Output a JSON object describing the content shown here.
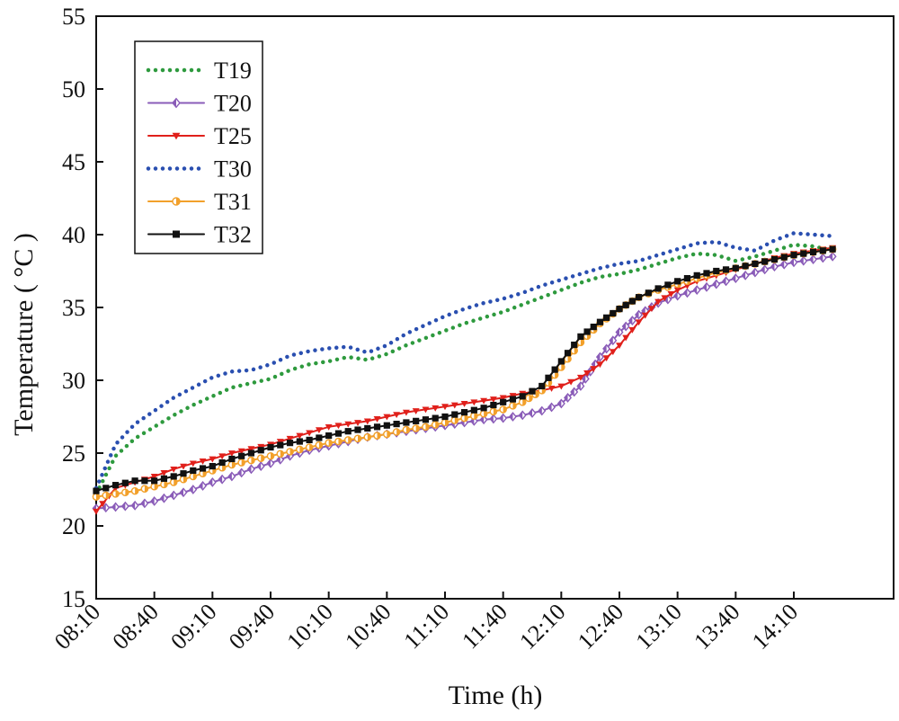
{
  "chart_data": {
    "type": "line",
    "title": "",
    "xlabel": "Time (h)",
    "ylabel": "Temperature ( °C )",
    "ylim": [
      15,
      55
    ],
    "yticks": [
      15,
      20,
      25,
      30,
      35,
      40,
      45,
      50,
      55
    ],
    "xlim": [
      "08:10",
      "14:30"
    ],
    "xticks": [
      "08:10",
      "08:40",
      "09:10",
      "09:40",
      "10:10",
      "10:40",
      "11:10",
      "11:40",
      "12:10",
      "12:40",
      "13:10",
      "13:40",
      "14:10"
    ],
    "grid": false,
    "legend_position": "top-left",
    "x": [
      "08:10",
      "08:20",
      "08:30",
      "08:40",
      "08:50",
      "09:00",
      "09:10",
      "09:20",
      "09:30",
      "09:40",
      "09:50",
      "10:00",
      "10:10",
      "10:20",
      "10:30",
      "10:40",
      "10:50",
      "11:00",
      "11:10",
      "11:20",
      "11:30",
      "11:40",
      "11:50",
      "12:00",
      "12:10",
      "12:20",
      "12:30",
      "12:40",
      "12:50",
      "13:00",
      "13:10",
      "13:20",
      "13:30",
      "13:40",
      "13:50",
      "14:00",
      "14:10",
      "14:20",
      "14:30"
    ],
    "series": [
      {
        "name": "T19",
        "color": "#2e9a3e",
        "style": "dotted",
        "marker": "none",
        "values": [
          22.2,
          24.8,
          26.0,
          26.8,
          27.6,
          28.3,
          28.9,
          29.5,
          29.8,
          30.1,
          30.7,
          31.1,
          31.3,
          31.6,
          31.4,
          31.8,
          32.4,
          32.9,
          33.4,
          33.9,
          34.3,
          34.7,
          35.2,
          35.7,
          36.2,
          36.7,
          37.1,
          37.3,
          37.6,
          38.0,
          38.4,
          38.7,
          38.6,
          38.2,
          38.5,
          38.9,
          39.3,
          39.2,
          38.9
        ]
      },
      {
        "name": "T20",
        "color": "#8a5cb8",
        "style": "solid",
        "marker": "diamond",
        "values": [
          21.2,
          21.3,
          21.4,
          21.7,
          22.1,
          22.5,
          23.0,
          23.4,
          23.9,
          24.3,
          24.8,
          25.2,
          25.5,
          25.8,
          26.1,
          26.3,
          26.5,
          26.7,
          26.9,
          27.1,
          27.3,
          27.4,
          27.6,
          27.9,
          28.4,
          29.6,
          31.6,
          33.3,
          34.5,
          35.3,
          35.8,
          36.2,
          36.6,
          37.0,
          37.4,
          37.8,
          38.1,
          38.3,
          38.5
        ]
      },
      {
        "name": "T25",
        "color": "#e0201b",
        "style": "solid",
        "marker": "triangle-down",
        "values": [
          21.0,
          22.6,
          23.0,
          23.4,
          23.9,
          24.3,
          24.6,
          25.0,
          25.3,
          25.6,
          26.0,
          26.4,
          26.8,
          27.0,
          27.2,
          27.5,
          27.8,
          28.0,
          28.2,
          28.4,
          28.6,
          28.8,
          29.1,
          29.3,
          29.6,
          30.2,
          31.1,
          32.4,
          34.0,
          35.4,
          36.2,
          36.8,
          37.2,
          37.6,
          38.0,
          38.4,
          38.7,
          38.9,
          39.1
        ]
      },
      {
        "name": "T30",
        "color": "#2a4fb0",
        "style": "dotted",
        "marker": "none",
        "values": [
          22.6,
          25.6,
          27.0,
          27.9,
          28.8,
          29.5,
          30.2,
          30.6,
          30.7,
          31.1,
          31.7,
          32.0,
          32.2,
          32.3,
          31.9,
          32.4,
          33.2,
          33.8,
          34.4,
          34.9,
          35.3,
          35.6,
          36.0,
          36.5,
          36.9,
          37.3,
          37.7,
          38.0,
          38.2,
          38.6,
          39.0,
          39.4,
          39.5,
          39.1,
          38.9,
          39.6,
          40.1,
          40.0,
          39.9
        ]
      },
      {
        "name": "T31",
        "color": "#f2a02a",
        "style": "solid",
        "marker": "half-circle",
        "values": [
          22.0,
          22.2,
          22.4,
          22.7,
          23.0,
          23.4,
          23.8,
          24.2,
          24.5,
          24.8,
          25.1,
          25.4,
          25.7,
          25.9,
          26.1,
          26.3,
          26.6,
          26.8,
          27.1,
          27.4,
          27.7,
          28.0,
          28.5,
          29.3,
          30.9,
          32.6,
          33.9,
          34.9,
          35.7,
          36.2,
          36.6,
          37.0,
          37.4,
          37.7,
          38.0,
          38.3,
          38.6,
          38.8,
          39.0
        ]
      },
      {
        "name": "T32",
        "color": "#111111",
        "style": "solid",
        "marker": "square",
        "values": [
          22.4,
          22.8,
          23.1,
          23.1,
          23.4,
          23.8,
          24.1,
          24.6,
          25.0,
          25.4,
          25.7,
          25.9,
          26.2,
          26.5,
          26.7,
          26.9,
          27.1,
          27.3,
          27.5,
          27.8,
          28.1,
          28.5,
          28.9,
          29.6,
          31.3,
          33.0,
          34.0,
          34.9,
          35.7,
          36.3,
          36.8,
          37.2,
          37.5,
          37.7,
          38.0,
          38.3,
          38.6,
          38.8,
          39.0
        ]
      }
    ]
  }
}
